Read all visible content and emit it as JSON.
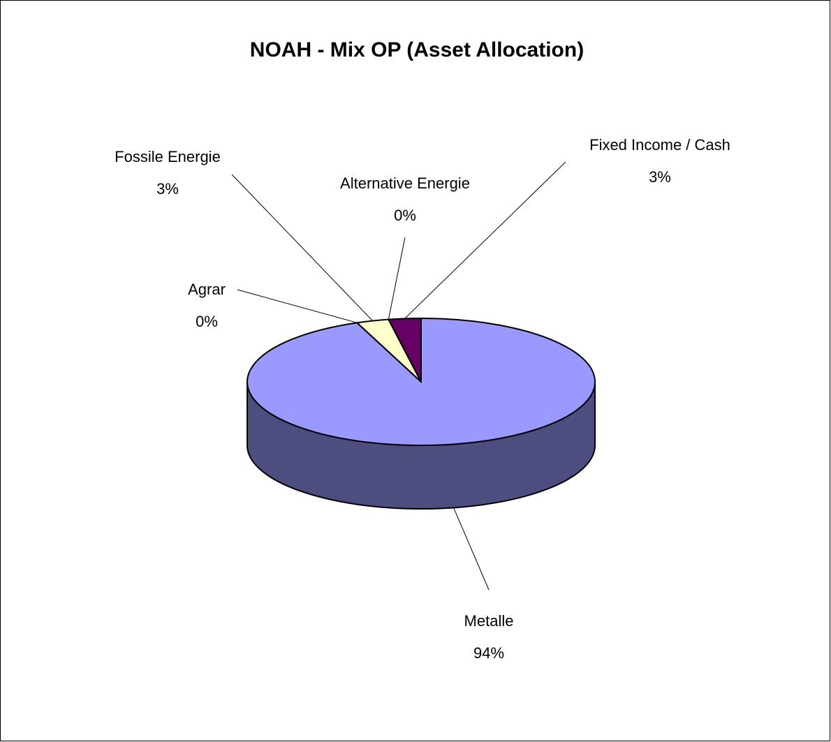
{
  "chart_data": {
    "type": "pie",
    "title": "NOAH - Mix OP (Asset Allocation)",
    "categories": [
      "Metalle",
      "Agrar",
      "Fossile Energie",
      "Alternative Energie",
      "Fixed Income / Cash"
    ],
    "values": [
      94,
      0,
      3,
      0,
      3
    ],
    "value_labels": [
      "94%",
      "0%",
      "3%",
      "0%",
      "3%"
    ],
    "colors": [
      "#9999ff",
      "#993366",
      "#ffffcc",
      "#ccffff",
      "#660066"
    ]
  }
}
